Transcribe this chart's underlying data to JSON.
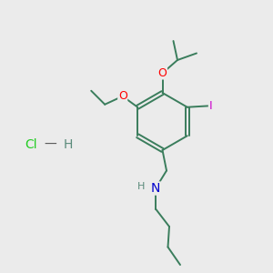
{
  "bg_color": "#ebebeb",
  "bond_color": "#3a7d5c",
  "bond_width": 1.4,
  "atom_colors": {
    "O": "#ff0000",
    "N": "#0000cc",
    "I": "#cc00cc",
    "Cl": "#22cc22",
    "H": "#5a8a7a"
  },
  "font_size_atom": 9,
  "hcl_cl_color": "#22cc22",
  "hcl_h_color": "#5a8a7a"
}
